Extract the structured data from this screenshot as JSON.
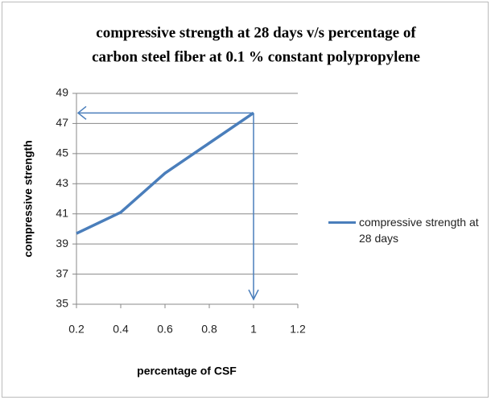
{
  "chart_data": {
    "type": "line",
    "title": [
      "compressive strength at 28 days v/s percentage of",
      "carbon steel fiber at 0.1 %  constant polypropylene"
    ],
    "x_label": "percentage of CSF",
    "y_label": "compressive strength",
    "x": [
      0.2,
      0.4,
      0.6,
      0.8,
      1
    ],
    "series": [
      {
        "name": "compressive strength at 28 days",
        "color": "#4a7ebb",
        "values": [
          39.7,
          41.1,
          43.7,
          45.7,
          47.7
        ]
      }
    ],
    "xlim": [
      0.2,
      1.2
    ],
    "xticks": [
      0.2,
      0.4,
      0.6,
      0.8,
      1,
      1.2
    ],
    "ylim": [
      35,
      49
    ],
    "yticks": [
      35,
      37,
      39,
      41,
      43,
      45,
      47,
      49
    ],
    "grid": true,
    "legend": "right"
  }
}
